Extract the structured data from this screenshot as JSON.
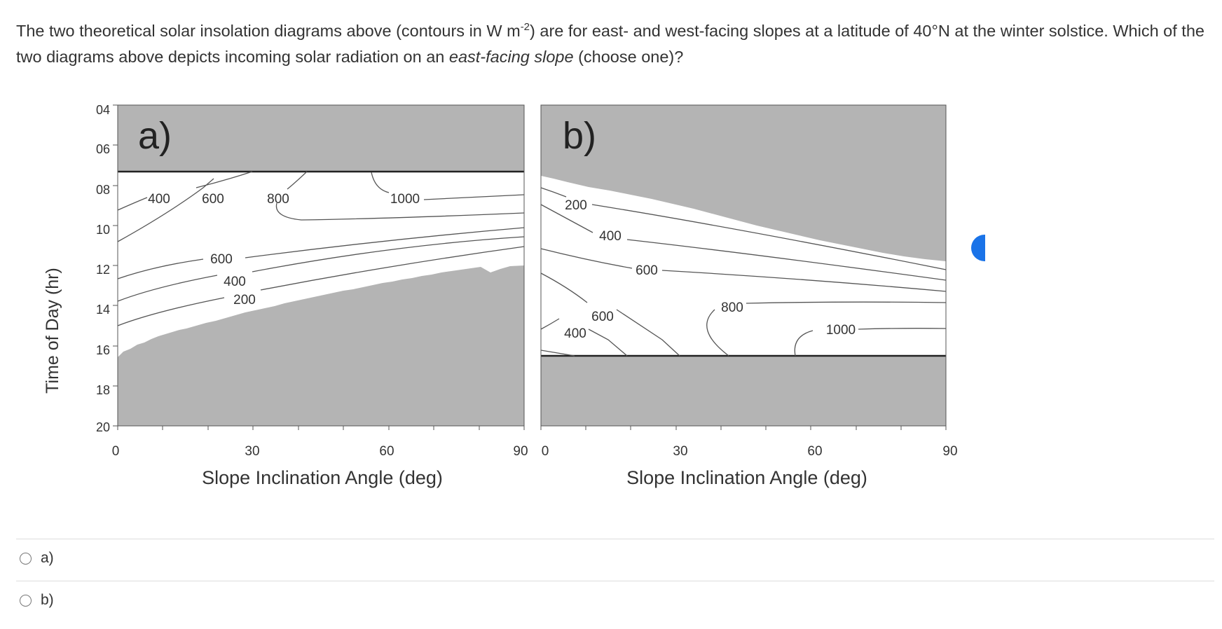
{
  "question": {
    "pre": "The two theoretical solar insolation diagrams above (contours in W m",
    "sup": "-2",
    "mid": ") are for east- and west-facing slopes at a latitude of 40°N at the winter solstice. Which of the two diagrams above depicts incoming solar radiation on an ",
    "em": "east-facing slope",
    "post": " (choose one)?"
  },
  "figure": {
    "y_axis_label": "Time of Day (hr)",
    "y_ticks": [
      "04",
      "06",
      "08",
      "10",
      "12",
      "14",
      "16",
      "18",
      "20"
    ],
    "x_ticks": [
      "0",
      "30",
      "60",
      "90"
    ],
    "panels": [
      {
        "letter": "a)",
        "x_label": "Slope Inclination Angle (deg)",
        "contour_labels": [
          "400",
          "600",
          "800",
          "1000",
          "600",
          "400",
          "200"
        ]
      },
      {
        "letter": "b)",
        "x_label": "Slope Inclination Angle (deg)",
        "contour_labels": [
          "200",
          "400",
          "600",
          "600",
          "400",
          "800",
          "1000"
        ]
      }
    ]
  },
  "options": [
    {
      "label": "a)"
    },
    {
      "label": "b)"
    }
  ],
  "colors": {
    "shade": "#b4b4b4",
    "contour": "#555555",
    "text": "#333333",
    "accent": "#1a73e8"
  }
}
